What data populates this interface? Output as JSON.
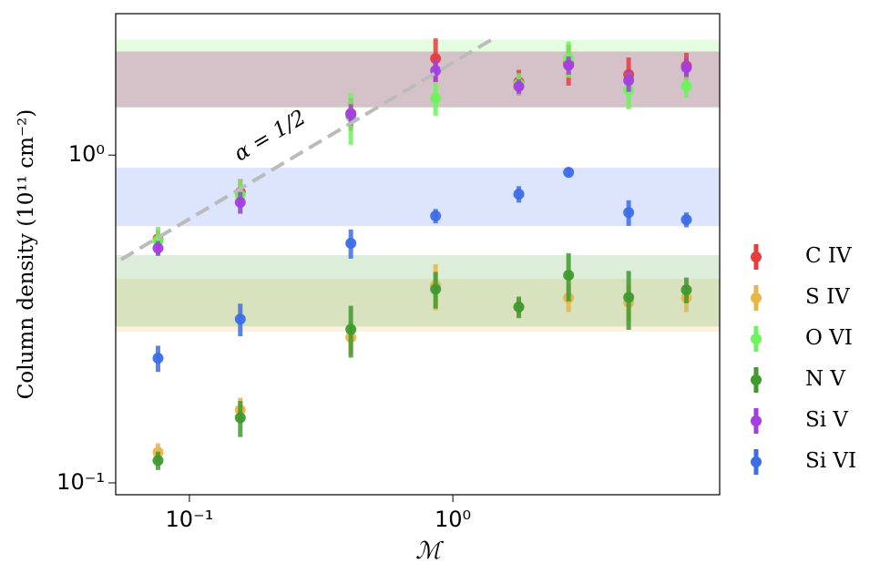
{
  "chart_data": {
    "type": "scatter",
    "log_x": true,
    "log_y": true,
    "x_label": "ℳ",
    "y_label": "Column density (10¹¹ cm⁻²)",
    "x": [
      0.076,
      0.156,
      0.41,
      0.86,
      1.78,
      2.75,
      4.65,
      7.7
    ],
    "xlim": [
      0.0525,
      10.3
    ],
    "ylim": [
      0.092,
      2.7
    ],
    "xticks": [
      {
        "value": 0.1,
        "label": "10⁻¹"
      },
      {
        "value": 1,
        "label": "10⁰"
      }
    ],
    "yticks": [
      {
        "value": 0.1,
        "label": "10⁻¹"
      },
      {
        "value": 1,
        "label": "10⁰"
      }
    ],
    "legend": "right",
    "reference_line": {
      "label": "α = 1/2",
      "color": "#bbbbbb",
      "x": [
        0.055,
        1.47
      ],
      "y": [
        0.48,
        2.3
      ]
    },
    "series": [
      {
        "name": "C IV",
        "color": "#e83c3c",
        "band": [
          1.4,
          2.07
        ],
        "values": [
          0.555,
          0.77,
          1.34,
          1.97,
          1.67,
          1.9,
          1.76,
          1.87
        ],
        "errors": [
          0.036,
          0.074,
          0.154,
          0.3,
          0.15,
          0.27,
          0.225,
          0.18
        ]
      },
      {
        "name": "S IV",
        "color": "#e8b54a",
        "band": [
          0.289,
          0.419
        ],
        "values": [
          0.124,
          0.167,
          0.278,
          0.4,
          0.344,
          0.367,
          0.355,
          0.367
        ],
        "errors": [
          0.008,
          0.015,
          0.032,
          0.064,
          0.022,
          0.035,
          0.045,
          0.035
        ]
      },
      {
        "name": "O VI",
        "color": "#6cf55a",
        "band": [
          1.39,
          2.25
        ],
        "values": [
          0.548,
          0.755,
          1.31,
          1.49,
          1.65,
          1.97,
          1.58,
          1.62
        ],
        "errors": [
          0.056,
          0.087,
          0.235,
          0.17,
          0.127,
          0.25,
          0.2,
          0.124
        ]
      },
      {
        "name": "N V",
        "color": "#3f9a2f",
        "band": [
          0.3,
          0.495
        ],
        "values": [
          0.117,
          0.158,
          0.294,
          0.39,
          0.344,
          0.43,
          0.368,
          0.388
        ],
        "errors": [
          0.0075,
          0.02,
          0.053,
          0.05,
          0.026,
          0.072,
          0.075,
          0.035
        ]
      },
      {
        "name": "Si V",
        "color": "#a43ee0",
        "band": [
          1.4,
          2.07
        ],
        "values": [
          0.52,
          0.717,
          1.33,
          1.81,
          1.62,
          1.88,
          1.69,
          1.85
        ],
        "errors": [
          0.027,
          0.055,
          0.1,
          0.14,
          0.083,
          0.12,
          0.13,
          0.12
        ]
      },
      {
        "name": "Si VI",
        "color": "#3d6ee8",
        "band": [
          0.607,
          0.915
        ],
        "values": [
          0.24,
          0.316,
          0.538,
          0.652,
          0.76,
          0.886,
          0.668,
          0.635
        ],
        "errors": [
          0.022,
          0.036,
          0.055,
          0.033,
          0.044,
          0.028,
          0.06,
          0.033
        ]
      }
    ]
  }
}
